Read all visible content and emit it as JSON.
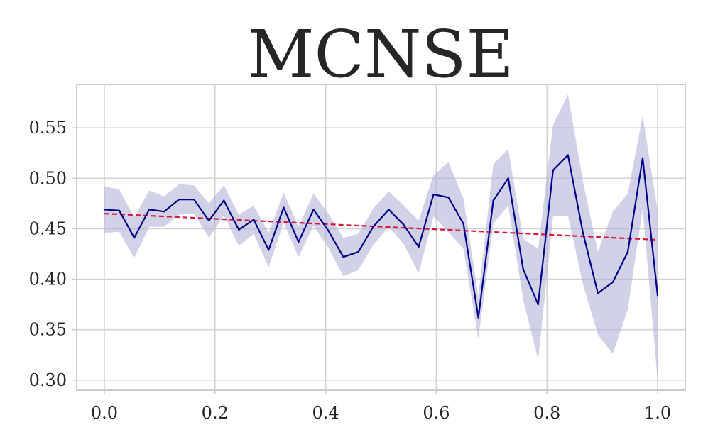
{
  "chart_data": {
    "type": "line",
    "title": "MCNSE",
    "xlabel": "",
    "ylabel": "",
    "xlim": [
      -0.05,
      1.05
    ],
    "ylim": [
      0.29,
      0.593
    ],
    "grid": true,
    "x_ticks": [
      "0.0",
      "0.2",
      "0.4",
      "0.6",
      "0.8",
      "1.0"
    ],
    "y_ticks": [
      "0.30",
      "0.35",
      "0.40",
      "0.45",
      "0.50",
      "0.55"
    ],
    "colors": {
      "line": "#00008b",
      "band": "#b3b3d9",
      "trend": "#dc143c"
    },
    "series": [
      {
        "style": "solid",
        "x": [
          0.0,
          0.027,
          0.054,
          0.081,
          0.108,
          0.135,
          0.162,
          0.189,
          0.216,
          0.243,
          0.27,
          0.297,
          0.324,
          0.351,
          0.378,
          0.405,
          0.432,
          0.459,
          0.486,
          0.514,
          0.541,
          0.568,
          0.595,
          0.622,
          0.649,
          0.676,
          0.703,
          0.73,
          0.757,
          0.784,
          0.811,
          0.838,
          0.865,
          0.892,
          0.919,
          0.946,
          0.973,
          1.0
        ],
        "values": [
          0.469,
          0.468,
          0.441,
          0.469,
          0.467,
          0.479,
          0.479,
          0.458,
          0.478,
          0.449,
          0.459,
          0.429,
          0.471,
          0.437,
          0.469,
          0.448,
          0.422,
          0.427,
          0.452,
          0.469,
          0.454,
          0.432,
          0.484,
          0.481,
          0.455,
          0.362,
          0.478,
          0.5,
          0.41,
          0.375,
          0.508,
          0.523,
          0.446,
          0.386,
          0.397,
          0.427,
          0.52,
          0.384
        ],
        "lower": [
          0.446,
          0.447,
          0.421,
          0.452,
          0.452,
          0.464,
          0.465,
          0.441,
          0.463,
          0.433,
          0.445,
          0.412,
          0.456,
          0.422,
          0.453,
          0.431,
          0.403,
          0.409,
          0.434,
          0.452,
          0.435,
          0.406,
          0.462,
          0.447,
          0.43,
          0.341,
          0.455,
          0.473,
          0.38,
          0.32,
          0.462,
          0.463,
          0.395,
          0.345,
          0.326,
          0.37,
          0.47,
          0.3
        ],
        "upper": [
          0.492,
          0.489,
          0.461,
          0.488,
          0.482,
          0.494,
          0.493,
          0.475,
          0.493,
          0.464,
          0.473,
          0.446,
          0.486,
          0.452,
          0.485,
          0.465,
          0.441,
          0.445,
          0.47,
          0.487,
          0.473,
          0.458,
          0.503,
          0.516,
          0.48,
          0.383,
          0.514,
          0.529,
          0.44,
          0.43,
          0.553,
          0.583,
          0.497,
          0.427,
          0.467,
          0.485,
          0.562,
          0.468
        ]
      },
      {
        "style": "dashed",
        "x": [
          0.0,
          1.0
        ],
        "values": [
          0.465,
          0.439
        ]
      }
    ]
  }
}
